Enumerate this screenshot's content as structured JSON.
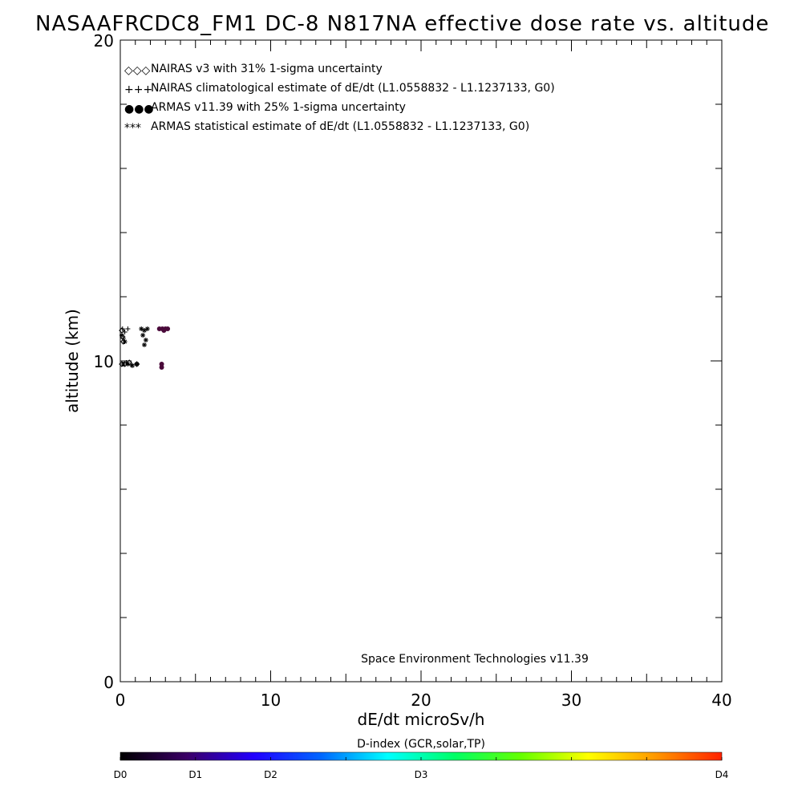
{
  "chart_data": {
    "type": "scatter",
    "title": "NASAAFRCDC8_FM1 DC-8   N817NA effective dose rate vs. altitude",
    "xlabel": "dE/dt microSv/h",
    "ylabel": "altitude (km)",
    "xlim": [
      0,
      40
    ],
    "ylim": [
      0,
      20
    ],
    "x_ticks": [
      "0",
      "10",
      "20",
      "30",
      "40"
    ],
    "y_ticks": [
      "0",
      "10",
      "20"
    ],
    "legend_position": "top-left",
    "legend": [
      {
        "symbol": "◇◇◇",
        "label": "NAIRAS v3 with 31% 1-sigma uncertainty",
        "color": "#000000"
      },
      {
        "symbol": "+++",
        "label": "NAIRAS climatological estimate of dE/dt (L1.0558832 - L1.1237133, G0)",
        "color": "#000000"
      },
      {
        "symbol": "●●●",
        "label": "ARMAS v11.39 with 25% 1-sigma uncertainty",
        "color": "#1a3ad6"
      },
      {
        "symbol": "***",
        "label": "ARMAS statistical estimate of dE/dt (L1.0558832 - L1.1237133, G0)",
        "color": "#000000"
      }
    ],
    "annotation": "Space Environment Technologies v11.39",
    "series": [
      {
        "name": "NAIRAS v3 with 31% 1-sigma uncertainty",
        "marker": "diamond",
        "points": [
          [
            0.1,
            10.95
          ],
          [
            0.15,
            10.75
          ],
          [
            0.2,
            10.6
          ],
          [
            0.1,
            9.9
          ],
          [
            0.3,
            9.9
          ],
          [
            0.6,
            9.95
          ],
          [
            1.1,
            9.9
          ]
        ]
      },
      {
        "name": "NAIRAS climatological estimate of dE/dt (L1.0558832 - L1.1237133, G0)",
        "marker": "plus",
        "points": [
          [
            0.15,
            11.0
          ],
          [
            0.3,
            10.9
          ],
          [
            0.5,
            11.0
          ],
          [
            0.2,
            10.7
          ],
          [
            0.4,
            9.95
          ],
          [
            0.7,
            9.9
          ]
        ]
      },
      {
        "name": "ARMAS v11.39 with 25% 1-sigma uncertainty",
        "marker": "dot",
        "points": [
          [
            2.6,
            11.0
          ],
          [
            2.8,
            11.0
          ],
          [
            3.0,
            11.0
          ],
          [
            3.15,
            11.0
          ],
          [
            2.9,
            10.95
          ],
          [
            2.75,
            9.9
          ],
          [
            2.75,
            9.8
          ]
        ]
      },
      {
        "name": "ARMAS statistical estimate of dE/dt (L1.0558832 - L1.1237133, G0)",
        "marker": "asterisk",
        "points": [
          [
            1.4,
            11.0
          ],
          [
            1.6,
            10.95
          ],
          [
            1.8,
            11.0
          ],
          [
            1.5,
            10.8
          ],
          [
            1.7,
            10.65
          ],
          [
            1.6,
            10.5
          ],
          [
            0.2,
            9.9
          ],
          [
            0.5,
            9.9
          ],
          [
            0.8,
            9.85
          ],
          [
            1.1,
            9.9
          ],
          [
            0.3,
            10.6
          ],
          [
            0.1,
            10.8
          ]
        ]
      }
    ],
    "colorbar": {
      "title": "D-index (GCR,solar,TP)",
      "labels": [
        "D0",
        "D1",
        "D2",
        "D3",
        "D4"
      ],
      "label_positions": [
        0,
        0.125,
        0.25,
        0.5,
        1.0
      ],
      "colors": [
        "#000000",
        "#3b0066",
        "#2200ff",
        "#0066ff",
        "#00ffff",
        "#00ff66",
        "#66ff00",
        "#ffff00",
        "#ff9900",
        "#ff2200"
      ]
    }
  }
}
